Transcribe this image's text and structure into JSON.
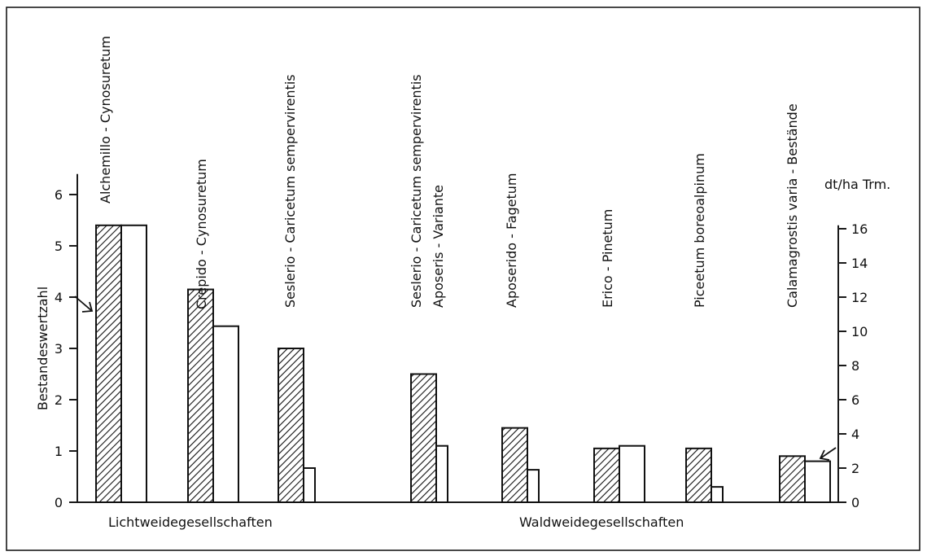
{
  "chart_data": {
    "type": "bar",
    "categories": [
      [
        "Alchemillo - Cynosuretum"
      ],
      [
        "Crepido - Cynosuretum"
      ],
      [
        "Seslerio - Caricetum  sempervirentis"
      ],
      [
        "Seslerio - Caricetum  sempervirentis",
        "Aposeris - Variante"
      ],
      [
        "Aposerido - Fagetum"
      ],
      [
        "Erico - Pinetum"
      ],
      [
        "Piceetum  boreoalpinum"
      ],
      [
        "Calamagrostis  varia - Bestände"
      ]
    ],
    "series": [
      {
        "name": "Bestandeswertzahl",
        "axis": "left",
        "style": "hatched",
        "values": [
          5.4,
          4.15,
          3.0,
          2.5,
          1.45,
          1.05,
          1.05,
          0.9
        ]
      },
      {
        "name": "dt/ha Trm.",
        "axis": "right",
        "style": "open",
        "values": [
          16.2,
          10.3,
          2.0,
          3.3,
          1.9,
          3.3,
          0.9,
          2.4
        ]
      }
    ],
    "left_axis": {
      "label": "Bestandeswertzahl",
      "ticks": [
        0,
        1,
        2,
        3,
        4,
        5,
        6
      ],
      "range": [
        0,
        6.75
      ]
    },
    "right_axis": {
      "label": "dt/ha Trm.",
      "ticks": [
        0,
        2,
        4,
        6,
        8,
        10,
        12,
        14,
        16
      ],
      "range": [
        0,
        18
      ]
    },
    "groups": [
      {
        "label": "Lichtweidegesellschaften",
        "categories": [
          0,
          1,
          2
        ]
      },
      {
        "label": "Waldweidegesellschaften",
        "categories": [
          3,
          4,
          5,
          6,
          7
        ]
      }
    ],
    "annotations": [
      {
        "type": "arrow",
        "points_to": "Bestandeswertzahl"
      },
      {
        "type": "arrow",
        "points_to": "dt/ha Trm."
      }
    ],
    "grid": false
  }
}
